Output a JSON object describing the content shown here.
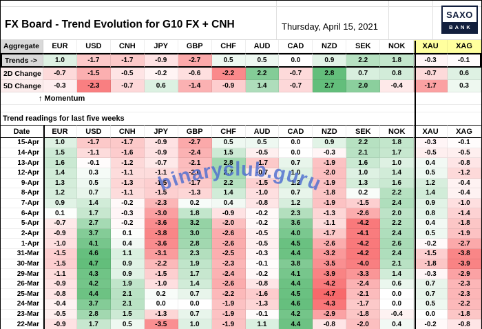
{
  "header": {
    "title": "FX Board - Trend Evolution for G10 FX + CNH",
    "date": "Thursday, April 15, 2021",
    "logo_top": "SAXO",
    "logo_bottom": "BANK"
  },
  "watermark": "binaryclub.guru",
  "colors": {
    "heat_positive_max": "#63be7b",
    "heat_negative_max": "#f8696b",
    "heat_neutral": "#ffffff",
    "metal_header_bg": "#ffff9e",
    "label_bg": "#d9d9d9",
    "logo_navy": "#121f3d",
    "watermark_blue": "#4d6ccf"
  },
  "columns": [
    "EUR",
    "USD",
    "CNH",
    "JPY",
    "GBP",
    "CHF",
    "AUD",
    "CAD",
    "NZD",
    "SEK",
    "NOK",
    "XAU",
    "XAG"
  ],
  "metal_columns": [
    "XAU",
    "XAG"
  ],
  "aggregate": {
    "corner_label": "Aggregate",
    "momentum_label": "↑ Momentum",
    "rows": [
      {
        "label": "Trends ->",
        "scale_max": 4.7,
        "values": [
          1.0,
          -1.7,
          -1.7,
          -0.9,
          -2.7,
          0.5,
          0.5,
          0.0,
          0.9,
          2.2,
          1.8,
          -0.3,
          -0.1
        ]
      },
      {
        "label": "2D Change",
        "scale_max": 2.8,
        "values": [
          -0.7,
          -1.5,
          -0.5,
          -0.2,
          -0.6,
          -2.2,
          2.2,
          -0.7,
          2.8,
          0.7,
          0.8,
          -0.7,
          0.6
        ]
      },
      {
        "label": "5D Change",
        "scale_max": 2.7,
        "values": [
          -0.3,
          -2.3,
          -0.7,
          0.6,
          -1.4,
          -0.9,
          1.4,
          -0.7,
          2.7,
          2.0,
          -0.4,
          -1.7,
          0.3
        ]
      }
    ]
  },
  "history": {
    "section_title": "Trend readings for last five weeks",
    "date_label": "Date",
    "scale_max": 4.7,
    "rows": [
      {
        "date": "15-Apr",
        "values": [
          1.0,
          -1.7,
          -1.7,
          -0.9,
          -2.7,
          0.5,
          0.5,
          0.0,
          0.9,
          2.2,
          1.8,
          -0.3,
          -0.1
        ]
      },
      {
        "date": "14-Apr",
        "values": [
          1.5,
          -1.1,
          -1.6,
          -0.9,
          -2.4,
          1.5,
          -0.5,
          0.0,
          -0.3,
          2.1,
          1.7,
          -0.5,
          -0.5
        ]
      },
      {
        "date": "13-Apr",
        "values": [
          1.6,
          -0.1,
          -1.2,
          -0.7,
          -2.1,
          2.8,
          -1.7,
          0.7,
          -1.9,
          1.6,
          1.0,
          0.4,
          -0.8
        ]
      },
      {
        "date": "12-Apr",
        "values": [
          1.4,
          0.3,
          -1.1,
          -1.1,
          -2.0,
          2.7,
          -0.7,
          1.0,
          -2.0,
          1.0,
          1.4,
          0.5,
          -1.2
        ]
      },
      {
        "date": "9-Apr",
        "values": [
          1.3,
          0.5,
          -1.3,
          -1.5,
          -1.7,
          2.2,
          -1.5,
          1.2,
          -1.9,
          1.3,
          1.6,
          1.2,
          -0.4
        ]
      },
      {
        "date": "8-Apr",
        "values": [
          1.2,
          0.7,
          -1.1,
          -1.5,
          -1.3,
          1.4,
          -1.0,
          0.7,
          -1.8,
          0.2,
          2.2,
          1.4,
          -0.4
        ]
      },
      {
        "date": "7-Apr",
        "values": [
          0.9,
          1.4,
          -0.2,
          -2.3,
          0.2,
          0.4,
          -0.8,
          1.2,
          -1.9,
          -1.5,
          2.4,
          0.9,
          -1.0
        ]
      },
      {
        "date": "6-Apr",
        "values": [
          0.1,
          1.7,
          -0.3,
          -3.0,
          1.8,
          -0.9,
          -0.2,
          2.3,
          -1.3,
          -2.6,
          2.0,
          0.8,
          -1.4
        ]
      },
      {
        "date": "5-Apr",
        "values": [
          -0.7,
          2.7,
          -0.2,
          -3.6,
          3.2,
          -2.0,
          -0.2,
          3.6,
          -1.1,
          -4.2,
          2.2,
          0.4,
          -1.8
        ]
      },
      {
        "date": "2-Apr",
        "values": [
          -0.9,
          3.7,
          0.1,
          -3.8,
          3.0,
          -2.6,
          -0.5,
          4.0,
          -1.7,
          -4.1,
          2.4,
          0.5,
          -1.9
        ]
      },
      {
        "date": "1-Apr",
        "values": [
          -1.0,
          4.1,
          0.4,
          -3.6,
          2.8,
          -2.6,
          -0.5,
          4.5,
          -2.6,
          -4.2,
          2.6,
          -0.2,
          -2.7
        ]
      },
      {
        "date": "31-Mar",
        "values": [
          -1.5,
          4.6,
          1.1,
          -3.1,
          2.3,
          -2.5,
          -0.3,
          4.4,
          -3.2,
          -4.2,
          2.4,
          -1.5,
          -3.8
        ]
      },
      {
        "date": "30-Mar",
        "values": [
          -1.5,
          4.7,
          0.9,
          -2.2,
          1.9,
          -2.3,
          -0.1,
          3.8,
          -3.5,
          -4.0,
          2.1,
          -1.8,
          -3.9
        ]
      },
      {
        "date": "29-Mar",
        "values": [
          -1.1,
          4.3,
          0.9,
          -1.5,
          1.7,
          -2.4,
          -0.2,
          4.1,
          -3.9,
          -3.3,
          1.4,
          -0.3,
          -2.9
        ]
      },
      {
        "date": "26-Mar",
        "values": [
          -0.9,
          4.2,
          1.9,
          -1.0,
          1.4,
          -2.6,
          -0.8,
          4.4,
          -4.2,
          -2.4,
          0.6,
          0.7,
          -2.3
        ]
      },
      {
        "date": "25-Mar",
        "values": [
          -0.8,
          4.4,
          2.1,
          0.2,
          0.7,
          -2.2,
          -1.6,
          4.5,
          -4.7,
          -2.1,
          0.0,
          0.7,
          -2.3
        ]
      },
      {
        "date": "24-Mar",
        "values": [
          -0.4,
          3.7,
          2.1,
          0.0,
          0.0,
          -1.9,
          -1.3,
          4.6,
          -4.3,
          -1.7,
          0.0,
          0.5,
          -2.2
        ]
      },
      {
        "date": "23-Mar",
        "values": [
          -0.5,
          2.8,
          1.5,
          -1.3,
          0.7,
          -1.9,
          -0.1,
          4.2,
          -2.9,
          -1.8,
          -0.4,
          0.0,
          -1.8
        ]
      },
      {
        "date": "22-Mar",
        "values": [
          -0.9,
          1.7,
          0.5,
          -3.5,
          1.0,
          -1.9,
          1.1,
          4.4,
          -0.8,
          -2.0,
          0.4,
          -0.2,
          -0.8
        ]
      }
    ]
  }
}
